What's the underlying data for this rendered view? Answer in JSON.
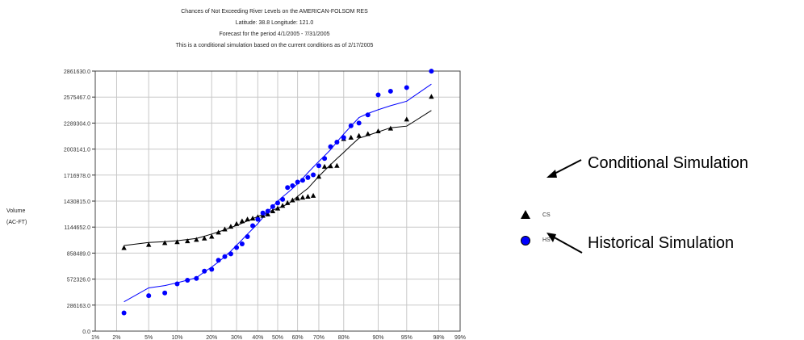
{
  "header": {
    "line1": "Chances of Not Exceeding River Levels on the AMERICAN-FOLSOM RES",
    "line2": "Latitude: 38.8    Longitude: 121.0",
    "line3": "Forecast for the period 4/1/2005 - 7/31/2005",
    "line4": "This is a conditional simulation based on the current conditions as of 2/17/2005"
  },
  "ylabel_line1": "Volume",
  "ylabel_line2": "(AC-FT)",
  "legend": {
    "cs_label": "CS",
    "hs_label": "HS"
  },
  "annotations": {
    "conditional": "Conditional Simulation",
    "historical": "Historical Simulation"
  },
  "colors": {
    "cs": "#000000",
    "hs": "#0000ff",
    "grid": "#c8c8c8"
  },
  "chart_data": {
    "type": "scatter",
    "xlabel": "",
    "ylabel": "Volume (AC-FT)",
    "x_scale": "normal-probability",
    "x_ticks": [
      1,
      2,
      5,
      10,
      20,
      30,
      40,
      50,
      60,
      70,
      80,
      90,
      95,
      98,
      99
    ],
    "x_tick_labels": [
      "1%",
      "2%",
      "5%",
      "10%",
      "20%",
      "30%",
      "40%",
      "50%",
      "60%",
      "70%",
      "80%",
      "90%",
      "95%",
      "98%",
      "99%"
    ],
    "y_ticks": [
      0,
      286163,
      572326,
      858489,
      1144652,
      1430815,
      1716978,
      2003141,
      2289304,
      2575467,
      2861630
    ],
    "y_tick_labels": [
      "0.0",
      "286163.0",
      "572326.0",
      "858489.0",
      "1144652.0",
      "1430815.0",
      "1716978.0",
      "2003141.0",
      "2289304.0",
      "2575467.0",
      "2861630.0"
    ],
    "ylim": [
      0,
      2861630
    ],
    "grid": true,
    "series": [
      {
        "name": "CS",
        "marker": "triangle",
        "points": [
          [
            2.5,
            915000
          ],
          [
            5,
            950000
          ],
          [
            7.5,
            970000
          ],
          [
            10,
            980000
          ],
          [
            12.5,
            990000
          ],
          [
            15,
            1005000
          ],
          [
            17.5,
            1020000
          ],
          [
            20,
            1040000
          ],
          [
            22.5,
            1085000
          ],
          [
            25,
            1120000
          ],
          [
            27.5,
            1150000
          ],
          [
            30,
            1180000
          ],
          [
            32.5,
            1210000
          ],
          [
            35,
            1230000
          ],
          [
            37.5,
            1240000
          ],
          [
            40,
            1255000
          ],
          [
            42.5,
            1270000
          ],
          [
            45,
            1285000
          ],
          [
            47.5,
            1320000
          ],
          [
            50,
            1350000
          ],
          [
            52.5,
            1380000
          ],
          [
            55,
            1410000
          ],
          [
            57.5,
            1440000
          ],
          [
            60,
            1460000
          ],
          [
            62.5,
            1470000
          ],
          [
            65,
            1480000
          ],
          [
            67.5,
            1490000
          ],
          [
            70,
            1700000
          ],
          [
            72.5,
            1810000
          ],
          [
            75,
            1815000
          ],
          [
            77.5,
            1820000
          ],
          [
            80,
            2115000
          ],
          [
            82.5,
            2130000
          ],
          [
            85,
            2150000
          ],
          [
            87.5,
            2170000
          ],
          [
            90,
            2200000
          ],
          [
            92.5,
            2230000
          ],
          [
            95,
            2330000
          ],
          [
            97.5,
            2580000
          ]
        ]
      },
      {
        "name": "HS",
        "marker": "circle",
        "points": [
          [
            2.5,
            200000
          ],
          [
            5,
            390000
          ],
          [
            7.5,
            420000
          ],
          [
            10,
            520000
          ],
          [
            12.5,
            560000
          ],
          [
            15,
            580000
          ],
          [
            17.5,
            660000
          ],
          [
            20,
            680000
          ],
          [
            22.5,
            780000
          ],
          [
            25,
            820000
          ],
          [
            27.5,
            850000
          ],
          [
            30,
            920000
          ],
          [
            32.5,
            960000
          ],
          [
            35,
            1040000
          ],
          [
            37.5,
            1160000
          ],
          [
            40,
            1230000
          ],
          [
            42.5,
            1300000
          ],
          [
            45,
            1320000
          ],
          [
            47.5,
            1370000
          ],
          [
            50,
            1410000
          ],
          [
            52.5,
            1450000
          ],
          [
            55,
            1580000
          ],
          [
            57.5,
            1600000
          ],
          [
            60,
            1640000
          ],
          [
            62.5,
            1660000
          ],
          [
            65,
            1690000
          ],
          [
            67.5,
            1720000
          ],
          [
            70,
            1820000
          ],
          [
            72.5,
            1900000
          ],
          [
            75,
            2030000
          ],
          [
            77.5,
            2080000
          ],
          [
            80,
            2130000
          ],
          [
            82.5,
            2260000
          ],
          [
            85,
            2290000
          ],
          [
            87.5,
            2380000
          ],
          [
            90,
            2600000
          ],
          [
            92.5,
            2640000
          ],
          [
            95,
            2680000
          ],
          [
            97.5,
            2860000
          ]
        ]
      }
    ]
  }
}
